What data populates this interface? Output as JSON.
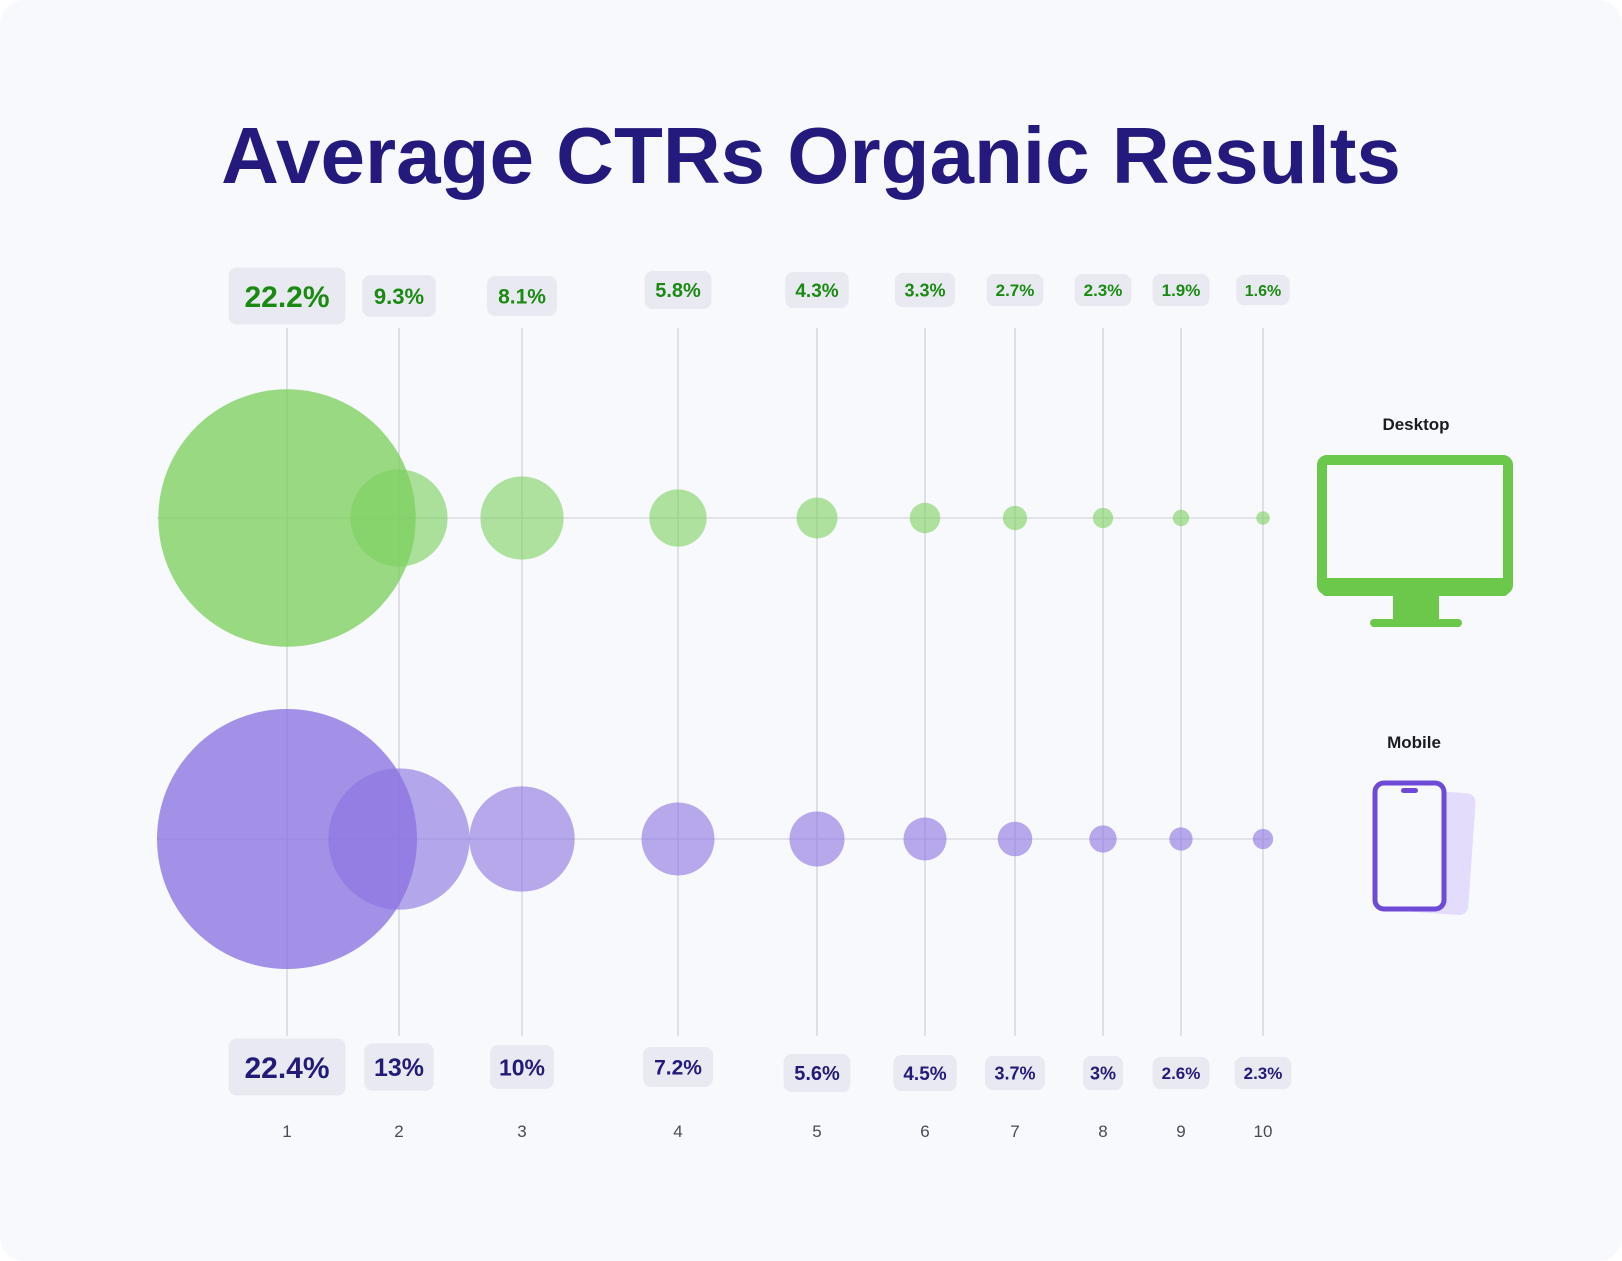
{
  "chart_data": {
    "type": "bubble",
    "title": "Average CTRs Organic Results",
    "categories": [
      "1",
      "2",
      "3",
      "4",
      "5",
      "6",
      "7",
      "8",
      "9",
      "10"
    ],
    "series": [
      {
        "name": "Desktop",
        "values": [
          22.2,
          9.3,
          8.1,
          5.8,
          4.3,
          3.3,
          2.7,
          2.3,
          1.9,
          1.6
        ],
        "labels": [
          "22.2%",
          "9.3%",
          "8.1%",
          "5.8%",
          "4.3%",
          "3.3%",
          "2.7%",
          "2.3%",
          "1.9%",
          "1.6%"
        ],
        "bubble_color": "#7dd05f",
        "label_color": "#1a8a12",
        "icon": "monitor-icon"
      },
      {
        "name": "Mobile",
        "values": [
          22.4,
          13,
          10,
          7.2,
          5.6,
          4.5,
          3.7,
          3,
          2.6,
          2.3
        ],
        "labels": [
          "22.4%",
          "13%",
          "10%",
          "7.2%",
          "5.6%",
          "4.5%",
          "3.7%",
          "3%",
          "2.6%",
          "2.3%"
        ],
        "bubble_color": "#8b72e0",
        "label_color": "#221b78",
        "icon": "smartphone-icon"
      }
    ],
    "grid": true,
    "legend": "right"
  },
  "colors": {
    "title": "#241a7d",
    "background": "#f8f9fd",
    "label_box": "#e9eaf1",
    "gridline": "#d6d7de",
    "desktop_icon": "#6cc84b",
    "mobile_icon": "#6f4ad6",
    "mobile_icon_back": "#e3dcfb"
  }
}
